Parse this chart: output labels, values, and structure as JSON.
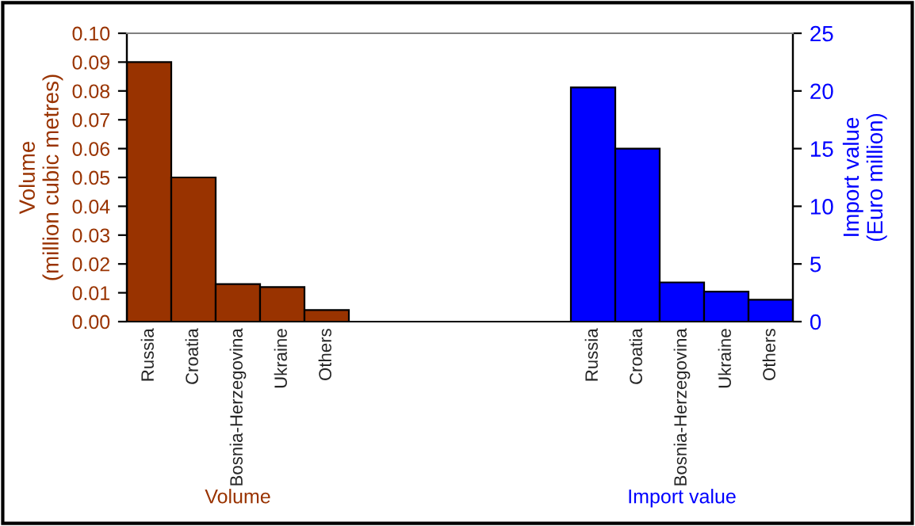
{
  "chart_data": {
    "type": "bar",
    "ylabel": "Volume\n(million cubic metres)",
    "y2label": "Import value\n(Euro million)",
    "categories": [
      "Russia",
      "Croatia",
      "Bosnia-Herzegovina",
      "Ukraine",
      "Others",
      null,
      null,
      null,
      null,
      null,
      "Russia",
      "Croatia",
      "Bosnia-Herzegovina",
      "Ukraine",
      "Others"
    ],
    "series": [
      {
        "color": "#993300",
        "values": [
          0.09,
          0.05,
          0.013,
          0.012,
          0.004,
          null,
          null,
          null,
          null,
          null,
          null,
          null,
          null,
          null,
          null
        ]
      },
      {
        "color": "#0000ff",
        "axis": "y2",
        "values": [
          null,
          null,
          null,
          null,
          null,
          null,
          null,
          null,
          null,
          null,
          20.3,
          15.0,
          3.4,
          2.6,
          1.9
        ]
      }
    ],
    "ylim": [
      0,
      0.1
    ],
    "yticks": [
      {
        "value": 0,
        "label": "0.00"
      },
      {
        "value": 0.01,
        "label": "0.01"
      },
      {
        "value": 0.02,
        "label": "0.02"
      },
      {
        "value": 0.03,
        "label": "0.03"
      },
      {
        "value": 0.04,
        "label": "0.04"
      },
      {
        "value": 0.05,
        "label": "0.05"
      },
      {
        "value": 0.06,
        "label": "0.06"
      },
      {
        "value": 0.07,
        "label": "0.07"
      },
      {
        "value": 0.08,
        "label": "0.08"
      },
      {
        "value": 0.09,
        "label": "0.09"
      },
      {
        "value": 0.1,
        "label": "0.10"
      }
    ],
    "y2lim": [
      0,
      25
    ],
    "y2ticks": [
      0,
      5,
      10,
      15,
      20,
      25
    ],
    "annotations": [
      "Volume",
      "Import value"
    ],
    "grid": false,
    "legend": false
  }
}
